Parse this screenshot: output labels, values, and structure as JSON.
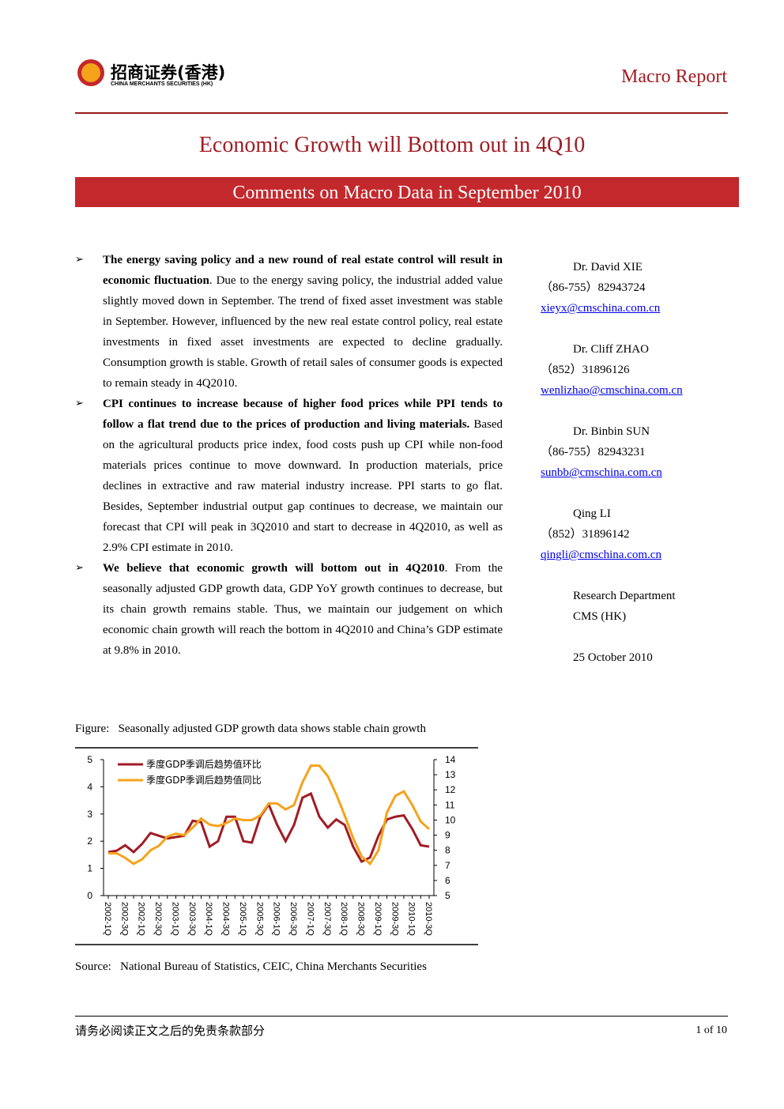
{
  "header": {
    "logo_cn": "招商证券(香港)",
    "logo_en": "CHINA MERCHANTS SECURITIES (HK)",
    "report_type": "Macro Report"
  },
  "title": "Economic Growth will Bottom out in 4Q10",
  "subtitle": "Comments on Macro Data in September 2010",
  "bullets": [
    {
      "bold": "The energy saving policy and a new round of real estate control will result in economic fluctuation",
      "text": ". Due to the energy saving policy, the industrial added value slightly moved down in September. The trend of fixed asset investment was stable in September. However, influenced by the new real estate control policy, real estate investments in fixed asset investments are expected to decline gradually. Consumption growth is stable. Growth of retail sales of consumer goods is expected to remain steady in 4Q2010."
    },
    {
      "bold": "CPI continues to increase because of higher food prices while PPI tends to follow a flat trend due to the prices of production and living materials.",
      "text": " Based on the agricultural products price index, food costs push up CPI while non-food materials prices continue to move downward. In production materials, price declines in extractive and raw material industry increase. PPI starts to go flat. Besides, September industrial output gap continues to decrease, we maintain our forecast that CPI will peak in 3Q2010 and start to decrease in 4Q2010, as well as 2.9% CPI estimate in 2010."
    },
    {
      "bold": "We believe that economic growth will bottom out in 4Q2010",
      "text": ". From the seasonally adjusted GDP growth data, GDP YoY growth continues to decrease, but its chain growth remains stable. Thus, we maintain our judgement on which economic chain growth will reach the bottom in 4Q2010 and China’s GDP estimate at 9.8% in 2010."
    }
  ],
  "contacts": [
    {
      "name": "Dr. David XIE",
      "phone": "（86-755）82943724",
      "email": "xieyx@cmschina.com.cn"
    },
    {
      "name": "Dr. Cliff ZHAO",
      "phone": "（852）31896126",
      "email": "wenlizhao@cmschina.com.cn"
    },
    {
      "name": "Dr. Binbin SUN",
      "phone": "（86-755）82943231",
      "email": "sunbb@cmschina.com.cn"
    },
    {
      "name": "Qing LI",
      "phone": "（852）31896142",
      "email": "qingli@cmschina.com.cn"
    }
  ],
  "department": "Research Department",
  "company": "CMS (HK)",
  "date": "25 October 2010",
  "figure_caption": "Figure:   Seasonally adjusted GDP growth data shows stable chain growth",
  "source": "Source:   National Bureau of Statistics, CEIC, China Merchants Securities",
  "footer": {
    "disclaimer": "请务必阅读正文之后的免责条款部分",
    "page": "1 of 10"
  },
  "chart_data": {
    "type": "line",
    "categories": [
      "2002-1Q",
      null,
      "2002-3Q",
      null,
      "2002-1Q",
      null,
      "2002-3Q",
      null,
      "2003-1Q",
      null,
      "2003-3Q",
      null,
      "2004-1Q",
      null,
      "2004-3Q",
      null,
      "2005-1Q",
      null,
      "2005-3Q",
      null,
      "2006-1Q",
      null,
      "2006-3Q",
      null,
      "2007-1Q",
      null,
      "2007-3Q",
      null,
      "2008-1Q",
      null,
      "2008-3Q",
      null,
      "2009-1Q",
      null,
      "2009-3Q",
      null,
      "2010-1Q",
      null,
      "2010-3Q"
    ],
    "series": [
      {
        "name": "季度GDP季调后趋势值环比",
        "color": "#a01c24",
        "values": [
          1.6,
          1.65,
          1.85,
          1.6,
          1.9,
          2.3,
          2.2,
          2.1,
          2.15,
          2.2,
          2.75,
          2.7,
          1.8,
          2.0,
          2.9,
          2.9,
          2.0,
          1.95,
          2.9,
          3.35,
          2.6,
          2.0,
          2.6,
          3.6,
          3.75,
          2.9,
          2.5,
          2.8,
          2.6,
          1.8,
          1.25,
          1.4,
          2.2,
          2.8,
          2.9,
          2.95,
          2.45,
          1.85,
          1.8
        ]
      },
      {
        "name": "季度GDP季调后趋势值同比",
        "color": "#f5a31a",
        "axis": "y2",
        "values": [
          7.8,
          7.8,
          7.5,
          7.1,
          7.4,
          8.0,
          8.3,
          8.9,
          9.1,
          9.0,
          9.5,
          10.1,
          9.7,
          9.6,
          9.8,
          10.1,
          10.0,
          10.0,
          10.3,
          11.1,
          11.1,
          10.7,
          11.0,
          12.5,
          13.6,
          13.6,
          12.9,
          11.7,
          10.3,
          8.8,
          7.6,
          7.1,
          8.0,
          10.5,
          11.6,
          11.9,
          11.0,
          9.9,
          9.4
        ]
      }
    ],
    "ylim": [
      0,
      5
    ],
    "yticks": [
      0,
      1,
      2,
      3,
      4,
      5
    ],
    "y2lim": [
      5,
      14
    ],
    "y2ticks": [
      5,
      6,
      7,
      8,
      9,
      10,
      11,
      12,
      13,
      14
    ],
    "legend": "upper left"
  }
}
